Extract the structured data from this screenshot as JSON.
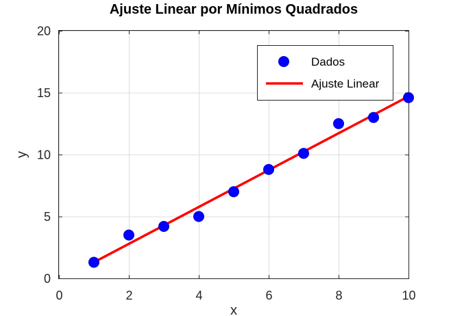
{
  "chart_data": {
    "type": "scatter",
    "title": "Ajuste Linear por Mínimos Quadrados",
    "xlabel": "x",
    "ylabel": "y",
    "xlim": [
      0,
      10
    ],
    "ylim": [
      0,
      20
    ],
    "xticks": [
      0,
      2,
      4,
      6,
      8,
      10
    ],
    "yticks": [
      0,
      5,
      10,
      15,
      20
    ],
    "grid": true,
    "legend_position": "top-right",
    "series": [
      {
        "name": "Dados",
        "kind": "markers",
        "color": "#0000ff",
        "x": [
          1,
          2,
          3,
          4,
          5,
          6,
          7,
          8,
          9,
          10
        ],
        "y": [
          1.3,
          3.5,
          4.2,
          5.0,
          7.0,
          8.8,
          10.1,
          12.5,
          13.0,
          14.6
        ]
      },
      {
        "name": "Ajuste Linear",
        "kind": "line",
        "color": "#ff0000",
        "x": [
          1,
          10
        ],
        "y": [
          1.3,
          14.7
        ]
      }
    ]
  }
}
